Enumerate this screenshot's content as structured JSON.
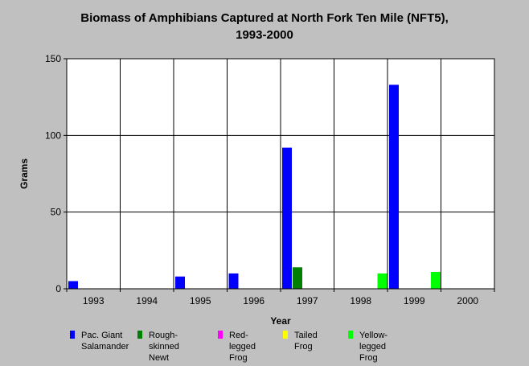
{
  "chart_data": {
    "type": "bar",
    "title_lines": [
      "Biomass of Amphibians Captured at North Fork Ten Mile (NFT5),",
      "1993-2000"
    ],
    "xlabel": "Year",
    "ylabel": "Grams",
    "ylim": [
      0,
      150
    ],
    "yticks": [
      0,
      50,
      100,
      150
    ],
    "categories": [
      "1993",
      "1994",
      "1995",
      "1996",
      "1997",
      "1998",
      "1999",
      "2000"
    ],
    "series": [
      {
        "name": "Pac. Giant\nSalamander",
        "color": "#0000ff",
        "values": [
          5,
          0,
          8,
          10,
          92,
          0,
          133,
          0
        ]
      },
      {
        "name": "Rough-skinned\nNewt",
        "color": "#008000",
        "values": [
          0,
          0,
          0,
          0,
          14,
          0,
          0,
          0
        ]
      },
      {
        "name": "Red-legged\nFrog",
        "color": "#ff00ff",
        "values": [
          0,
          0,
          0,
          0,
          0,
          0,
          0,
          0
        ]
      },
      {
        "name": "Tailed Frog",
        "color": "#ffff00",
        "values": [
          0,
          0,
          0,
          0,
          0,
          0,
          0,
          0
        ]
      },
      {
        "name": "Yellow-legged\nFrog",
        "color": "#00ff00",
        "values": [
          0,
          0,
          0,
          0,
          0,
          10,
          11,
          0
        ]
      }
    ],
    "grid": true,
    "legend_position": "bottom",
    "plot_background": "#ffffff",
    "page_background": "#c0c0c0"
  }
}
